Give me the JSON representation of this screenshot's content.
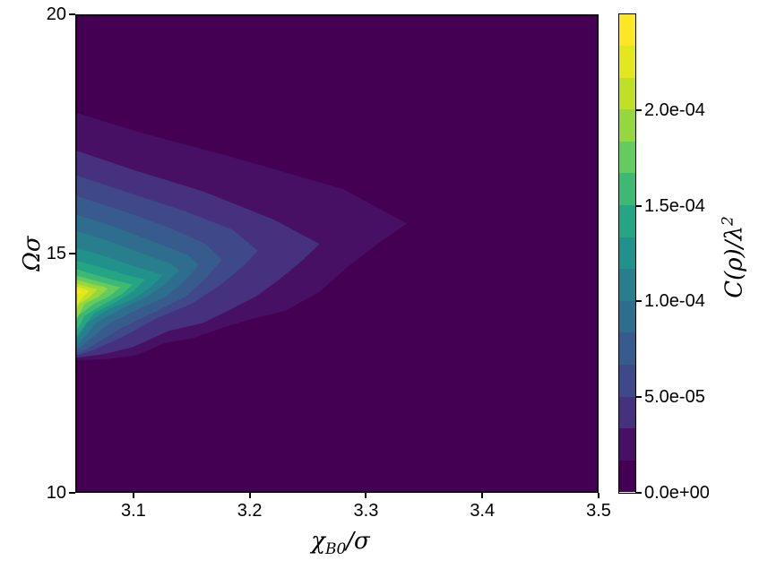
{
  "chart_data": {
    "type": "heatmap",
    "subtype": "filled_contour_plot",
    "title": "",
    "xlabel": {
      "chi": "χ",
      "sub": "B0",
      "rest": "/σ",
      "plain_text": "χ_B0/σ"
    },
    "ylabel": "Ωσ",
    "colorbar_label": {
      "main": "C(ρ)/λ",
      "sup": "2",
      "plain_text": "C(ρ)/λ²"
    },
    "x_range": [
      3.05,
      3.5
    ],
    "y_range": [
      10,
      20
    ],
    "grid": false,
    "x_ticks": [
      {
        "value": 3.1,
        "label": "3.1"
      },
      {
        "value": 3.2,
        "label": "3.2"
      },
      {
        "value": 3.3,
        "label": "3.3"
      },
      {
        "value": 3.4,
        "label": "3.4"
      },
      {
        "value": 3.5,
        "label": "3.5"
      }
    ],
    "y_ticks": [
      {
        "value": 10,
        "label": "10"
      },
      {
        "value": 15,
        "label": "15"
      },
      {
        "value": 20,
        "label": "20"
      }
    ],
    "colorbar": {
      "range": [
        0,
        0.00025
      ],
      "orientation": "vertical-right",
      "n_segments": 15,
      "ticks": [
        {
          "value": 0.0,
          "label": "0.0e+00"
        },
        {
          "value": 5e-05,
          "label": "5.0e-05"
        },
        {
          "value": 0.0001,
          "label": "1.0e-04"
        },
        {
          "value": 0.00015,
          "label": "1.5e-04"
        },
        {
          "value": 0.0002,
          "label": "2.0e-04"
        }
      ]
    },
    "levels": [
      0,
      1.67e-05,
      3.33e-05,
      5e-05,
      6.67e-05,
      8.33e-05,
      0.0001,
      0.0001167,
      0.0001333,
      0.00015,
      0.0001667,
      0.0001833,
      0.0002,
      0.0002167,
      0.0002333,
      0.00025
    ],
    "colors": [
      "#440154",
      "#471064",
      "#45317e",
      "#3f4889",
      "#375b8d",
      "#2e6d8e",
      "#277f8e",
      "#21918c",
      "#26a584",
      "#3eb974",
      "#64cb5e",
      "#96d73f",
      "#c0df25",
      "#e3e81e",
      "#fde725"
    ],
    "peak": {
      "x": 3.05,
      "y": 14.2,
      "value_band": "2.33e-04 to 2.50e-04"
    },
    "bands": [
      {
        "level": 1.67e-05,
        "points": [
          [
            3.05,
            17.95
          ],
          [
            3.11,
            17.5
          ],
          [
            3.18,
            17.05
          ],
          [
            3.28,
            16.35
          ],
          [
            3.335,
            15.63
          ],
          [
            3.31,
            15.2
          ],
          [
            3.284,
            14.72
          ],
          [
            3.26,
            14.2
          ],
          [
            3.23,
            13.8
          ],
          [
            3.204,
            13.65
          ],
          [
            3.179,
            13.47
          ],
          [
            3.152,
            13.24
          ],
          [
            3.127,
            13.13
          ],
          [
            3.102,
            12.87
          ],
          [
            3.075,
            12.79
          ],
          [
            3.05,
            12.77
          ]
        ]
      },
      {
        "level": 3.33e-05,
        "points": [
          [
            3.05,
            17.16
          ],
          [
            3.1,
            16.75
          ],
          [
            3.16,
            16.3
          ],
          [
            3.22,
            15.72
          ],
          [
            3.26,
            15.2
          ],
          [
            3.245,
            14.85
          ],
          [
            3.225,
            14.45
          ],
          [
            3.205,
            14.1
          ],
          [
            3.185,
            13.85
          ],
          [
            3.16,
            13.55
          ],
          [
            3.13,
            13.38
          ],
          [
            3.1,
            13.05
          ],
          [
            3.075,
            12.9
          ],
          [
            3.05,
            12.82
          ]
        ]
      },
      {
        "level": 5e-05,
        "points": [
          [
            3.05,
            16.64
          ],
          [
            3.095,
            16.28
          ],
          [
            3.145,
            15.88
          ],
          [
            3.185,
            15.5
          ],
          [
            3.207,
            15.06
          ],
          [
            3.195,
            14.75
          ],
          [
            3.175,
            14.35
          ],
          [
            3.15,
            13.95
          ],
          [
            3.12,
            13.65
          ],
          [
            3.09,
            13.25
          ],
          [
            3.065,
            12.98
          ],
          [
            3.05,
            12.86
          ]
        ]
      },
      {
        "level": 6.67e-05,
        "points": [
          [
            3.05,
            16.21
          ],
          [
            3.09,
            15.9
          ],
          [
            3.13,
            15.55
          ],
          [
            3.162,
            15.2
          ],
          [
            3.176,
            14.87
          ],
          [
            3.163,
            14.5
          ],
          [
            3.145,
            14.1
          ],
          [
            3.12,
            13.8
          ],
          [
            3.09,
            13.45
          ],
          [
            3.063,
            13.05
          ],
          [
            3.05,
            12.9
          ]
        ]
      },
      {
        "level": 8.33e-05,
        "points": [
          [
            3.05,
            15.82
          ],
          [
            3.085,
            15.55
          ],
          [
            3.12,
            15.22
          ],
          [
            3.147,
            14.97
          ],
          [
            3.156,
            14.76
          ],
          [
            3.145,
            14.45
          ],
          [
            3.128,
            14.1
          ],
          [
            3.105,
            13.85
          ],
          [
            3.08,
            13.55
          ],
          [
            3.057,
            13.1
          ],
          [
            3.05,
            12.96
          ]
        ]
      },
      {
        "level": 0.0001,
        "points": [
          [
            3.05,
            15.48
          ],
          [
            3.08,
            15.25
          ],
          [
            3.11,
            14.98
          ],
          [
            3.132,
            14.79
          ],
          [
            3.139,
            14.65
          ],
          [
            3.128,
            14.38
          ],
          [
            3.112,
            14.1
          ],
          [
            3.09,
            13.85
          ],
          [
            3.068,
            13.55
          ],
          [
            3.05,
            13.03
          ]
        ]
      },
      {
        "level": 0.0001167,
        "points": [
          [
            3.05,
            15.13
          ],
          [
            3.076,
            14.94
          ],
          [
            3.104,
            14.71
          ],
          [
            3.125,
            14.55
          ],
          [
            3.115,
            14.3
          ],
          [
            3.1,
            14.05
          ],
          [
            3.08,
            13.85
          ],
          [
            3.06,
            13.55
          ],
          [
            3.05,
            13.15
          ]
        ]
      },
      {
        "level": 0.0001333,
        "points": [
          [
            3.05,
            14.86
          ],
          [
            3.072,
            14.71
          ],
          [
            3.096,
            14.54
          ],
          [
            3.11,
            14.46
          ],
          [
            3.1,
            14.22
          ],
          [
            3.086,
            14.0
          ],
          [
            3.066,
            13.75
          ],
          [
            3.05,
            13.24
          ]
        ]
      },
      {
        "level": 0.00015,
        "points": [
          [
            3.05,
            14.68
          ],
          [
            3.068,
            14.55
          ],
          [
            3.088,
            14.42
          ],
          [
            3.099,
            14.35
          ],
          [
            3.09,
            14.15
          ],
          [
            3.075,
            13.95
          ],
          [
            3.058,
            13.7
          ],
          [
            3.05,
            13.35
          ]
        ]
      },
      {
        "level": 0.0001667,
        "points": [
          [
            3.05,
            14.55
          ],
          [
            3.066,
            14.44
          ],
          [
            3.083,
            14.33
          ],
          [
            3.089,
            14.3
          ],
          [
            3.08,
            14.12
          ],
          [
            3.066,
            13.95
          ],
          [
            3.052,
            13.7
          ],
          [
            3.05,
            13.45
          ]
        ]
      },
      {
        "level": 0.0001833,
        "points": [
          [
            3.05,
            14.46
          ],
          [
            3.063,
            14.37
          ],
          [
            3.075,
            14.3
          ],
          [
            3.078,
            14.27
          ],
          [
            3.07,
            14.1
          ],
          [
            3.058,
            13.95
          ],
          [
            3.05,
            13.58
          ]
        ]
      },
      {
        "level": 0.0002,
        "points": [
          [
            3.05,
            14.38
          ],
          [
            3.06,
            14.31
          ],
          [
            3.069,
            14.25
          ],
          [
            3.062,
            14.08
          ],
          [
            3.053,
            13.95
          ],
          [
            3.05,
            13.71
          ]
        ]
      },
      {
        "level": 0.0002167,
        "points": [
          [
            3.05,
            14.32
          ],
          [
            3.058,
            14.26
          ],
          [
            3.062,
            14.22
          ],
          [
            3.056,
            14.08
          ],
          [
            3.05,
            13.85
          ]
        ]
      },
      {
        "level": 0.0002333,
        "points": [
          [
            3.05,
            14.26
          ],
          [
            3.056,
            14.2
          ],
          [
            3.052,
            14.16
          ],
          [
            3.05,
            14.13
          ]
        ]
      }
    ]
  }
}
